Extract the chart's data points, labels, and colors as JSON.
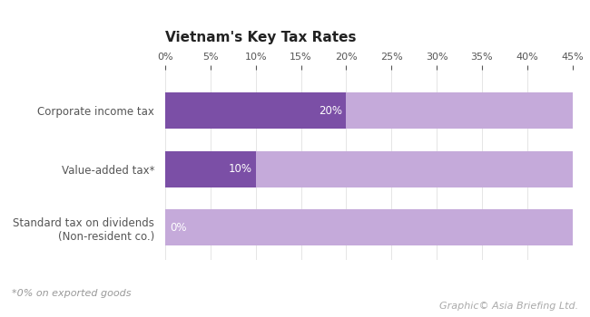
{
  "title": "Vietnam's Key Tax Rates",
  "categories": [
    "Corporate income tax",
    "Value-added tax*",
    "Standard tax on dividends\n(Non-resident co.)"
  ],
  "dark_values": [
    20,
    10,
    0
  ],
  "light_values": [
    45,
    45,
    45
  ],
  "dark_color": "#7B4FA6",
  "light_color": "#C5AADA",
  "bar_labels": [
    "20%",
    "10%",
    "0%"
  ],
  "xlim": [
    0,
    45
  ],
  "xticks": [
    0,
    5,
    10,
    15,
    20,
    25,
    30,
    35,
    40,
    45
  ],
  "footnote": "*0% on exported goods",
  "credit": "Graphic© Asia Briefing Ltd.",
  "background_color": "#FFFFFF",
  "bar_height": 0.62,
  "title_fontsize": 11,
  "label_fontsize": 8.5,
  "tick_fontsize": 8,
  "footnote_fontsize": 8,
  "credit_fontsize": 8
}
